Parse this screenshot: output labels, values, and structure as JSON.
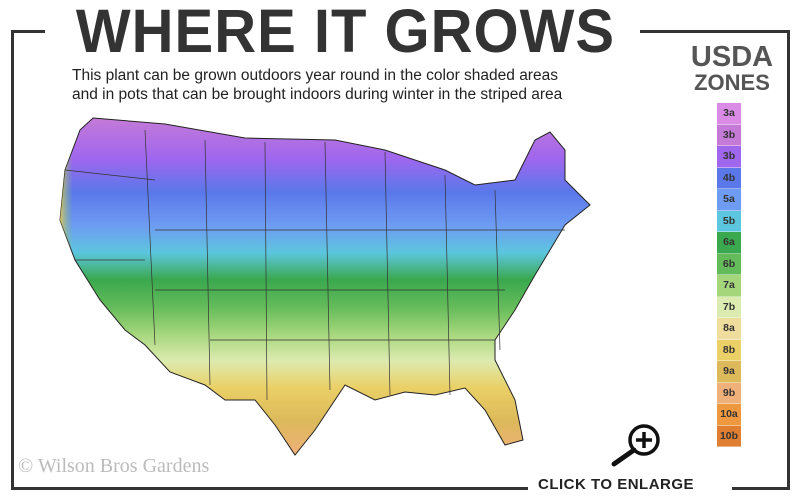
{
  "header": {
    "title": "WHERE IT GROWS",
    "subtitle_line1": "This plant can be grown outdoors year round in the color shaded areas",
    "subtitle_line2": "and in pots that can be brought indoors during winter in the striped area"
  },
  "legend": {
    "title_line1": "USDA",
    "title_line2": "ZONES",
    "zones": [
      {
        "label": "3a",
        "color": "#d98be6"
      },
      {
        "label": "3b",
        "color": "#c47ad6"
      },
      {
        "label": "3b",
        "color": "#9f66ee"
      },
      {
        "label": "4b",
        "color": "#5a78ea"
      },
      {
        "label": "5a",
        "color": "#6e9cf2"
      },
      {
        "label": "5b",
        "color": "#5cc6de"
      },
      {
        "label": "6a",
        "color": "#3aa84e"
      },
      {
        "label": "6b",
        "color": "#64bb5a"
      },
      {
        "label": "7a",
        "color": "#a5d67c"
      },
      {
        "label": "7b",
        "color": "#dcebb0"
      },
      {
        "label": "8a",
        "color": "#eedd9c"
      },
      {
        "label": "8b",
        "color": "#ead066"
      },
      {
        "label": "9a",
        "color": "#dcb95a"
      },
      {
        "label": "9b",
        "color": "#f0b07a"
      },
      {
        "label": "10a",
        "color": "#ee9840"
      },
      {
        "label": "10b",
        "color": "#e07e32"
      }
    ]
  },
  "footer": {
    "copyright": "© Wilson Bros Gardens",
    "enlarge_label": "CLICK TO ENLARGE",
    "enlarge_icon": "magnifier-plus-icon"
  }
}
